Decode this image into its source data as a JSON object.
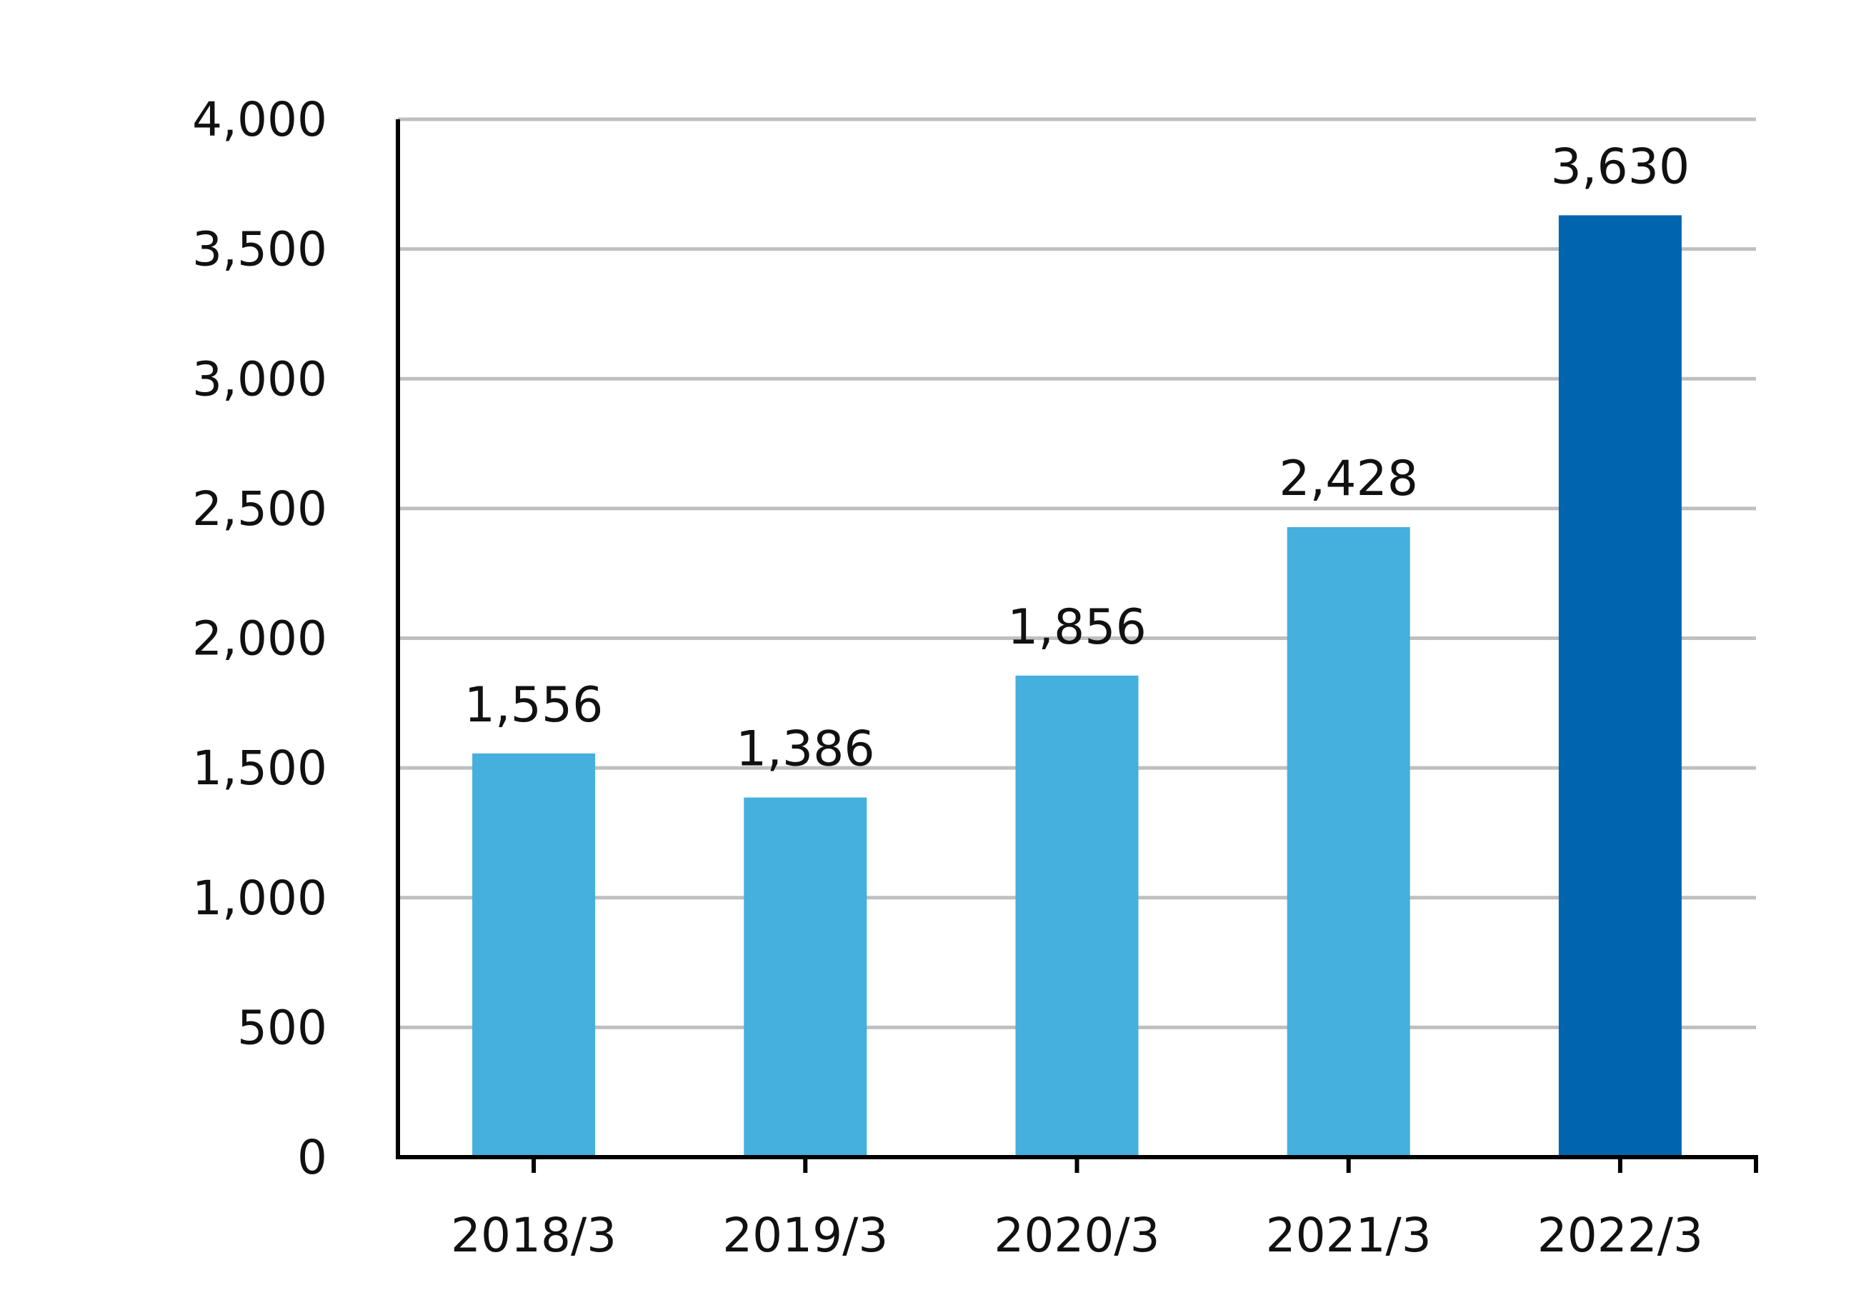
{
  "chart_data": {
    "type": "bar",
    "categories": [
      "2018/3",
      "2019/3",
      "2020/3",
      "2021/3",
      "2022/3"
    ],
    "values": [
      1556,
      1386,
      1856,
      2428,
      3630
    ],
    "data_labels": [
      "1,556",
      "1,386",
      "1,856",
      "2,428",
      "3,630"
    ],
    "y_ticks": [
      0,
      500,
      1000,
      1500,
      2000,
      2500,
      3000,
      3500,
      4000
    ],
    "y_tick_labels": [
      "0",
      "500",
      "1,000",
      "1,500",
      "2,000",
      "2,500",
      "3,000",
      "3,500",
      "4,000"
    ],
    "ylim": [
      0,
      4000
    ],
    "grid": true,
    "title": "",
    "xlabel": "",
    "ylabel": "",
    "colors": {
      "bar": "#45AFDE",
      "highlight_bar": "#0064AF",
      "grid": "#BFBFBF",
      "axis": "#000000"
    },
    "highlight_index": 4
  }
}
